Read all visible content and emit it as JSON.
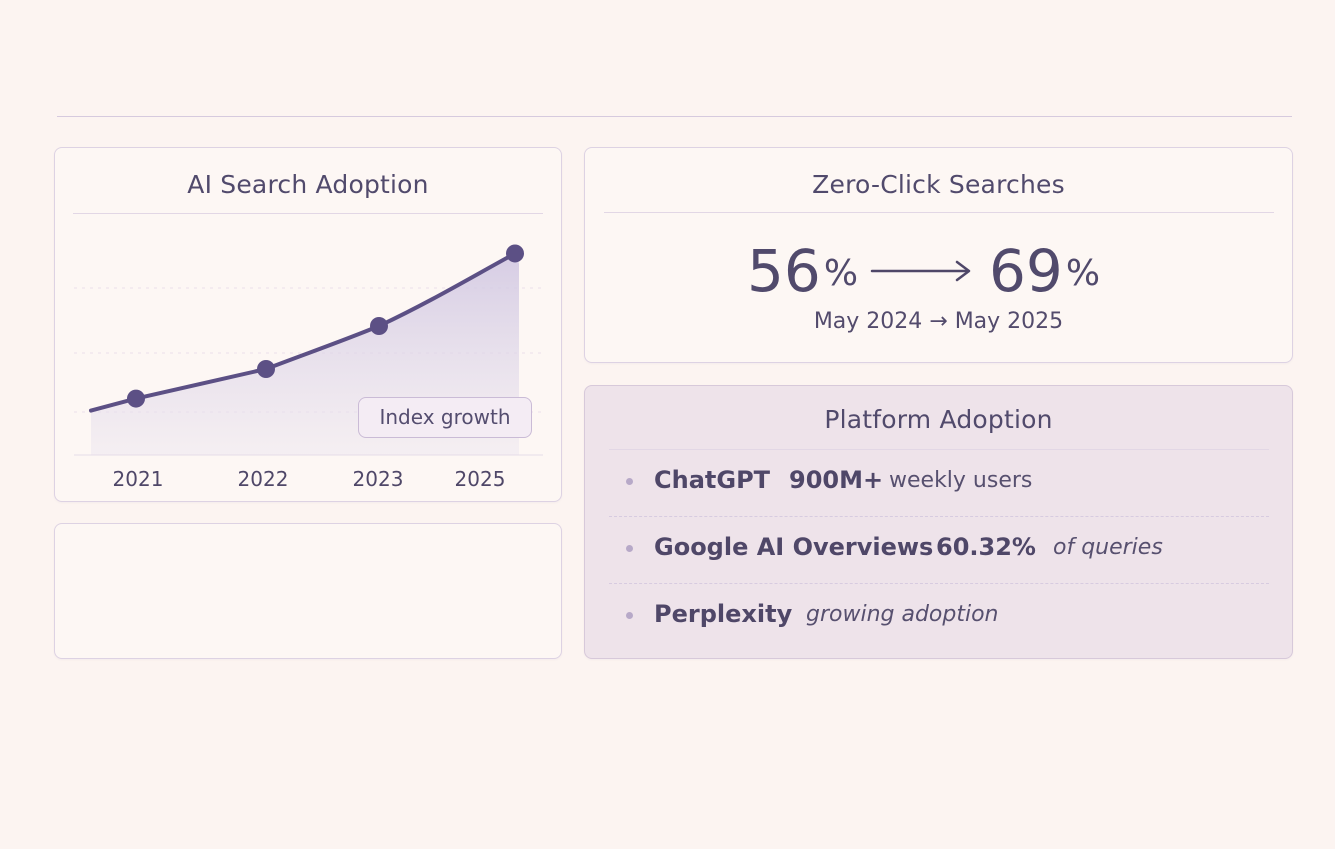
{
  "page": {
    "background": "#fcf4f1",
    "accent": "#5c5085",
    "area_fill": "#dcd4e8"
  },
  "ai_search_card": {
    "title": "AI Search Adoption"
  },
  "chart_data": {
    "type": "area",
    "title": "AI Search Adoption",
    "xlabel": "",
    "ylabel": "",
    "x": [
      "2021",
      "2022",
      "2023",
      "2025"
    ],
    "series": [
      {
        "name": "",
        "values": [
          21,
          32,
          48,
          75
        ]
      }
    ],
    "tick_labels": [
      "2021",
      "2022",
      "2023",
      "2025"
    ],
    "ylim": [
      0,
      80
    ],
    "grid": true,
    "legend": "none",
    "annotation": "Index growth"
  },
  "zero_click_card": {
    "title": "Zero-Click Searches",
    "from_value": "56",
    "to_value": "69",
    "percent_symbol": "%",
    "period": "May 2024 → May 2025"
  },
  "platform_card": {
    "title": "Platform Adoption",
    "items": [
      {
        "name": "ChatGPT",
        "stat": "900M+",
        "description": "weekly users"
      },
      {
        "name": "Google AI Overviews",
        "stat": "60.32%",
        "description": "of queries"
      },
      {
        "name": "Perplexity",
        "stat": "",
        "description": "growing adoption"
      }
    ]
  }
}
